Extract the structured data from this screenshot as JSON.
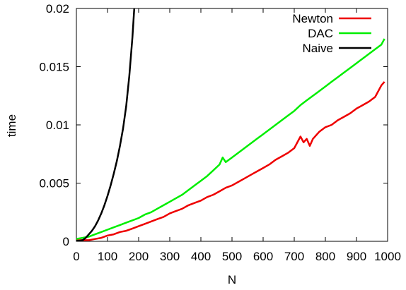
{
  "chart_data": {
    "type": "line",
    "title": "",
    "xlabel": "N",
    "ylabel": "time",
    "xlim": [
      0,
      1000
    ],
    "ylim": [
      0,
      0.02
    ],
    "xticks": [
      0,
      100,
      200,
      300,
      400,
      500,
      600,
      700,
      800,
      900,
      1000
    ],
    "xtick_labels": [
      "0",
      "100",
      "200",
      "300",
      "400",
      "500",
      "600",
      "700",
      "800",
      "900",
      "1000"
    ],
    "yticks": [
      0,
      0.005,
      0.01,
      0.015,
      0.02
    ],
    "ytick_labels": [
      "0",
      "0.005",
      "0.01",
      "0.015",
      "0.02"
    ],
    "grid": false,
    "legend_position": "top-right",
    "series": [
      {
        "name": "Newton",
        "color": "#ee0000",
        "x": [
          0,
          20,
          40,
          60,
          80,
          100,
          120,
          140,
          160,
          180,
          200,
          220,
          240,
          260,
          280,
          300,
          320,
          340,
          360,
          380,
          400,
          420,
          440,
          460,
          480,
          500,
          520,
          540,
          560,
          580,
          600,
          620,
          640,
          660,
          680,
          700,
          720,
          730,
          740,
          750,
          760,
          780,
          800,
          820,
          840,
          860,
          880,
          900,
          920,
          940,
          960,
          970,
          980,
          990
        ],
        "y": [
          0.0001,
          0.0001,
          0.0001,
          0.0002,
          0.0003,
          0.0005,
          0.0006,
          0.0008,
          0.0009,
          0.0011,
          0.0013,
          0.0015,
          0.0017,
          0.0019,
          0.0021,
          0.0024,
          0.0026,
          0.0028,
          0.0031,
          0.0033,
          0.0035,
          0.0038,
          0.004,
          0.0043,
          0.0046,
          0.0048,
          0.0051,
          0.0054,
          0.0057,
          0.006,
          0.0063,
          0.0066,
          0.007,
          0.0073,
          0.0076,
          0.008,
          0.009,
          0.0085,
          0.0088,
          0.0082,
          0.0088,
          0.0094,
          0.0098,
          0.01,
          0.0104,
          0.0107,
          0.011,
          0.0114,
          0.0117,
          0.012,
          0.0124,
          0.0129,
          0.0134,
          0.0137
        ]
      },
      {
        "name": "DAC",
        "color": "#00ee00",
        "x": [
          0,
          20,
          40,
          60,
          80,
          100,
          120,
          140,
          160,
          180,
          200,
          220,
          240,
          260,
          280,
          300,
          320,
          340,
          360,
          380,
          400,
          420,
          440,
          460,
          470,
          480,
          500,
          520,
          540,
          560,
          580,
          600,
          620,
          640,
          660,
          680,
          700,
          720,
          740,
          760,
          780,
          800,
          820,
          840,
          860,
          880,
          900,
          920,
          940,
          960,
          980,
          990
        ],
        "y": [
          0.0002,
          0.0003,
          0.0004,
          0.0006,
          0.0008,
          0.001,
          0.0012,
          0.0014,
          0.0016,
          0.0018,
          0.002,
          0.0023,
          0.0025,
          0.0028,
          0.0031,
          0.0034,
          0.0037,
          0.004,
          0.0044,
          0.0048,
          0.0052,
          0.0056,
          0.0061,
          0.0066,
          0.0072,
          0.0068,
          0.0072,
          0.0076,
          0.008,
          0.0084,
          0.0088,
          0.0092,
          0.0096,
          0.01,
          0.0104,
          0.0108,
          0.0112,
          0.0117,
          0.0121,
          0.0125,
          0.0129,
          0.0133,
          0.0137,
          0.0141,
          0.0145,
          0.0149,
          0.0153,
          0.0157,
          0.0161,
          0.0165,
          0.0169,
          0.0174
        ]
      },
      {
        "name": "Naive",
        "color": "#000000",
        "x": [
          0,
          10,
          20,
          30,
          40,
          50,
          60,
          70,
          80,
          90,
          100,
          110,
          120,
          130,
          140,
          150,
          160,
          170,
          180,
          186
        ],
        "y": [
          5e-05,
          5e-05,
          0.0001,
          0.0003,
          0.0006,
          0.0009,
          0.0013,
          0.0018,
          0.0024,
          0.0031,
          0.0039,
          0.0048,
          0.0058,
          0.0069,
          0.0082,
          0.0097,
          0.0116,
          0.0142,
          0.0175,
          0.02
        ]
      }
    ]
  }
}
